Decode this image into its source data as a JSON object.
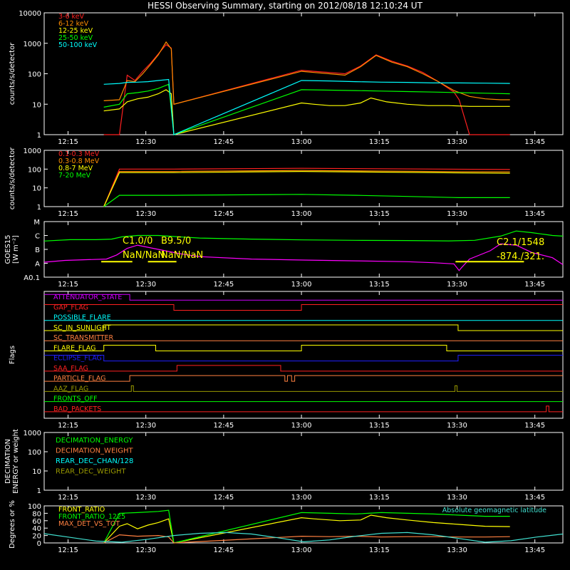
{
  "title": "HESSI Observing Summary, starting on 2012/08/18 12:10:24 UT",
  "x_ticks": [
    "12:15",
    "12:30",
    "12:45",
    "13:00",
    "13:15",
    "13:30",
    "13:45"
  ],
  "x_tick_minutes": [
    4.6,
    19.6,
    34.6,
    49.6,
    64.6,
    79.6,
    94.6
  ],
  "x_range_minutes": [
    0,
    100
  ],
  "chart_data": [
    {
      "id": "rate",
      "type": "line",
      "ylabel": "counts/s/detector",
      "yscale": "log",
      "ylim": [
        1,
        10000
      ],
      "y_ticks": [
        "1",
        "10",
        "100",
        "1000",
        "10000"
      ],
      "series": [
        {
          "name": "3-6 keV",
          "color": "#ff2020",
          "x": [
            11.5,
            14.5,
            16,
            17.5,
            19,
            20.5,
            22,
            23.5,
            24.5,
            25,
            49.6,
            52,
            55,
            58,
            61,
            64,
            67,
            70,
            73,
            76,
            79,
            80,
            82,
            85,
            88,
            89.8
          ],
          "y": [
            1,
            1,
            90,
            60,
            120,
            220,
            450,
            900,
            700,
            10,
            130,
            120,
            110,
            100,
            180,
            420,
            260,
            180,
            110,
            55,
            25,
            14,
            1,
            1,
            1,
            1
          ]
        },
        {
          "name": "6-12 keV",
          "color": "#ff8c00",
          "x": [
            11.5,
            14.5,
            16,
            17.5,
            19,
            20.5,
            22,
            23.5,
            24.5,
            25,
            49.6,
            52,
            55,
            58,
            61,
            64,
            67,
            70,
            73,
            76,
            79,
            82,
            85,
            88,
            89.8
          ],
          "y": [
            13,
            14,
            60,
            55,
            100,
            200,
            420,
            1100,
            650,
            10,
            120,
            110,
            100,
            90,
            170,
            400,
            240,
            170,
            100,
            55,
            28,
            18,
            15,
            14,
            14
          ]
        },
        {
          "name": "12-25 keV",
          "color": "#ffff00",
          "x": [
            11.5,
            14.5,
            16,
            18,
            20,
            22,
            23.5,
            24.5,
            25,
            49.6,
            52,
            55,
            58,
            61,
            63,
            66,
            70,
            74,
            78,
            82,
            86,
            89.8
          ],
          "y": [
            6,
            7,
            12,
            15,
            17,
            22,
            30,
            22,
            1,
            11,
            10,
            9,
            9,
            11,
            16,
            12,
            10,
            9,
            9,
            8.5,
            8.5,
            8.5
          ]
        },
        {
          "name": "25-50 keV",
          "color": "#00ff00",
          "x": [
            11.5,
            14.5,
            16,
            18,
            20,
            22,
            24,
            25,
            49.6,
            55,
            60,
            65,
            70,
            75,
            80,
            85,
            89.8
          ],
          "y": [
            8,
            10,
            22,
            24,
            27,
            33,
            45,
            1,
            30,
            29,
            28,
            27,
            26,
            25,
            24,
            23,
            22
          ]
        },
        {
          "name": "50-100 keV",
          "color": "#00ffff",
          "x": [
            11.5,
            14.5,
            16,
            18,
            20,
            22,
            24,
            25,
            49.6,
            55,
            60,
            65,
            70,
            75,
            80,
            85,
            89.8
          ],
          "y": [
            45,
            48,
            52,
            53,
            55,
            60,
            65,
            1,
            60,
            58,
            55,
            53,
            52,
            50,
            50,
            49,
            48
          ]
        }
      ]
    },
    {
      "id": "gamma",
      "type": "line",
      "ylabel": "counts/s/detector",
      "yscale": "log",
      "ylim": [
        1,
        1000
      ],
      "y_ticks": [
        "1",
        "10",
        "100",
        "1000"
      ],
      "series": [
        {
          "name": "0.1-0.3 MeV",
          "color": "#ff2020",
          "x": [
            11.5,
            14.5,
            25,
            49.6,
            89.8
          ],
          "y": [
            1,
            100,
            100,
            110,
            95
          ]
        },
        {
          "name": "0.3-0.8 MeV",
          "color": "#ff8c00",
          "x": [
            11.5,
            14.5,
            25,
            49.6,
            89.8
          ],
          "y": [
            1,
            75,
            75,
            85,
            70
          ]
        },
        {
          "name": "0.8-7 MeV",
          "color": "#ffff00",
          "x": [
            11.5,
            14.5,
            25,
            49.6,
            89.8
          ],
          "y": [
            1,
            65,
            65,
            75,
            60
          ]
        },
        {
          "name": "7-20 MeV",
          "color": "#00ff00",
          "x": [
            11.5,
            14.5,
            25,
            49.6,
            60,
            70,
            80,
            89.8
          ],
          "y": [
            1,
            4,
            4,
            4.5,
            4,
            3.5,
            3,
            3
          ]
        }
      ]
    },
    {
      "id": "goes",
      "type": "line",
      "ylabel": "GOES15",
      "ylabel2": "[W m⁻²]",
      "yscale": "log",
      "ylim": [
        1e-08,
        0.0001
      ],
      "y_tick_labels": [
        "A0.1",
        "A",
        "B",
        "C",
        "M"
      ],
      "y_tick_values": [
        1e-08,
        1e-07,
        1e-06,
        1e-05,
        0.0001
      ],
      "annotations": [
        "C1.0/0",
        "B9.5/0",
        "NaN/NaN",
        "NaN/NaN",
        "C2.1/1548",
        "-874./321."
      ],
      "series": [
        {
          "name": "long",
          "color": "#00ff00",
          "x": [
            0,
            5,
            10,
            13,
            15,
            18,
            22,
            26,
            30,
            40,
            50,
            60,
            70,
            78,
            83,
            88,
            91,
            94,
            98,
            100
          ],
          "y": [
            4e-06,
            5e-06,
            5e-06,
            5.5e-06,
            8e-06,
            1e-05,
            1e-05,
            8e-06,
            6.5e-06,
            5.5e-06,
            4.8e-06,
            4.5e-06,
            4.3e-06,
            4.1e-06,
            4.5e-06,
            9e-06,
            2.1e-05,
            1.6e-05,
            1e-05,
            9e-06
          ]
        },
        {
          "name": "short",
          "color": "#ff00ff",
          "x": [
            0,
            4,
            8,
            12,
            14,
            16,
            18,
            22,
            26,
            30,
            40,
            50,
            60,
            70,
            75,
            79,
            80,
            80.5,
            82,
            86,
            88,
            91,
            94,
            98,
            100
          ],
          "y": [
            1.2e-07,
            1.6e-07,
            1.8e-07,
            2e-07,
            4e-07,
            1.2e-06,
            2e-06,
            1e-06,
            5e-07,
            3e-07,
            2e-07,
            1.7e-07,
            1.5e-07,
            1.3e-07,
            1.1e-07,
            9e-08,
            3e-08,
            5e-08,
            2e-07,
            8e-07,
            2.5e-06,
            2e-06,
            6e-07,
            2.5e-07,
            8e-08
          ]
        }
      ],
      "segments": [
        {
          "color": "#ffff00",
          "x": [
            11,
            17
          ],
          "y": 1.3e-07
        },
        {
          "color": "#ffff00",
          "x": [
            20,
            25.5
          ],
          "y": 1.3e-07
        },
        {
          "color": "#ffff00",
          "x": [
            79.3,
            92.5
          ],
          "y": 1.3e-07
        }
      ]
    },
    {
      "id": "flags",
      "type": "flags",
      "ylabel": "Flags",
      "flags": [
        {
          "name": "ATTENUATOR_STATE",
          "color": "#d000ff",
          "steps": [
            [
              0,
              1
            ],
            [
              16.5,
              0
            ],
            [
              100,
              0
            ]
          ]
        },
        {
          "name": "GAP_FLAG",
          "color": "#ff2020",
          "steps": [
            [
              0,
              1
            ],
            [
              25,
              0
            ],
            [
              49.6,
              1
            ],
            [
              89.8,
              1
            ],
            [
              100,
              1
            ]
          ]
        },
        {
          "name": "POSSIBLE_FLARE",
          "color": "#00ffff",
          "steps": [
            [
              0,
              0
            ],
            [
              100,
              0
            ]
          ]
        },
        {
          "name": "SC_IN_SUNLIGHT",
          "color": "#ffff00",
          "steps": [
            [
              0,
              0
            ],
            [
              11.5,
              1
            ],
            [
              79.8,
              0
            ],
            [
              100,
              0
            ]
          ]
        },
        {
          "name": "SC_TRANSMITTER",
          "color": "#ff8040",
          "steps": [
            [
              0,
              0
            ],
            [
              100,
              0
            ]
          ]
        },
        {
          "name": "FLARE_FLAG",
          "color": "#ffff00",
          "steps": [
            [
              0,
              0
            ],
            [
              11.5,
              1
            ],
            [
              21.5,
              0
            ],
            [
              49.6,
              1
            ],
            [
              77.6,
              0
            ],
            [
              100,
              0
            ]
          ]
        },
        {
          "name": "ECLIPSE_FLAG",
          "color": "#2020ff",
          "steps": [
            [
              0,
              1
            ],
            [
              11.5,
              0
            ],
            [
              79.8,
              1
            ],
            [
              100,
              1
            ]
          ]
        },
        {
          "name": "SAA_FLAG",
          "color": "#ff2020",
          "steps": [
            [
              0,
              0
            ],
            [
              25.6,
              1
            ],
            [
              45.6,
              0
            ],
            [
              100,
              0
            ]
          ]
        },
        {
          "name": "PARTICLE_FLAG",
          "color": "#ff8040",
          "steps": [
            [
              0,
              0
            ],
            [
              16.5,
              1
            ],
            [
              46.4,
              0
            ],
            [
              46.9,
              1
            ],
            [
              47.7,
              0
            ],
            [
              48.3,
              1
            ],
            [
              100,
              1
            ]
          ]
        },
        {
          "name": "AAZ_FLAG",
          "color": "#999900",
          "steps": [
            [
              0,
              0
            ],
            [
              16.8,
              1
            ],
            [
              17.2,
              0
            ],
            [
              79.2,
              1
            ],
            [
              79.6,
              0
            ],
            [
              100,
              0
            ]
          ]
        },
        {
          "name": "FRONTS_OFF",
          "color": "#00ff00",
          "steps": [
            [
              0,
              0
            ],
            [
              100,
              0
            ]
          ]
        },
        {
          "name": "BAD_PACKETS",
          "color": "#ff2020",
          "steps": [
            [
              0,
              0
            ],
            [
              96.8,
              1
            ],
            [
              97.3,
              0
            ],
            [
              100,
              0
            ]
          ]
        }
      ]
    },
    {
      "id": "decim",
      "type": "line",
      "ylabel": "DECIMATION",
      "ylabel2": "ENERGY or weight",
      "yscale": "log",
      "ylim": [
        1,
        1000
      ],
      "y_ticks": [
        "1",
        "10",
        "100",
        "1000"
      ],
      "series": [
        {
          "name": "DECIMATION_ENERGY",
          "color": "#00ff00",
          "x": [],
          "y": []
        },
        {
          "name": "DECIMATION_WEIGHT",
          "color": "#ff8040",
          "x": [],
          "y": []
        },
        {
          "name": "REAR_DEC_CHAN/128",
          "color": "#00ffff",
          "x": [],
          "y": []
        },
        {
          "name": "REAR_DEC_WEIGHT",
          "color": "#999900",
          "x": [],
          "y": []
        }
      ]
    },
    {
      "id": "ratio",
      "type": "line",
      "ylabel": "Degrees or %",
      "yscale": "linear",
      "ylim": [
        0,
        100
      ],
      "y_ticks": [
        "0",
        "20",
        "40",
        "60",
        "80",
        "100"
      ],
      "right_note": "Absolute geomagnetic latitude",
      "series": [
        {
          "name": "FRONT_RATIO",
          "color": "#ffff00",
          "x": [
            11.5,
            14.5,
            16,
            18,
            20,
            22,
            24,
            25,
            49.6,
            52,
            57,
            61,
            63,
            66,
            70,
            75,
            80,
            85,
            89.8
          ],
          "y": [
            0,
            45,
            52,
            38,
            48,
            55,
            65,
            0,
            68,
            65,
            60,
            62,
            75,
            68,
            62,
            55,
            50,
            45,
            44
          ]
        },
        {
          "name": "FRONT_RATIO_1225",
          "color": "#00ff00",
          "x": [
            11.5,
            14.5,
            18,
            22,
            24,
            25,
            49.6,
            55,
            60,
            65,
            70,
            75,
            80,
            85,
            89.8
          ],
          "y": [
            0,
            80,
            82,
            85,
            88,
            0,
            82,
            80,
            78,
            82,
            80,
            78,
            75,
            72,
            72
          ]
        },
        {
          "name": "MAX_DET_VS_TOT",
          "color": "#ff8040",
          "x": [
            11.5,
            14.5,
            18,
            22,
            24,
            25,
            49.6,
            55,
            60,
            65,
            70,
            75,
            80,
            85,
            89.8
          ],
          "y": [
            0,
            22,
            18,
            20,
            16,
            0,
            18,
            17,
            18,
            16,
            17,
            17,
            16,
            16,
            17
          ]
        },
        {
          "name": "geomag",
          "color": "#40e0d0",
          "x": [
            0,
            5,
            10,
            15,
            20,
            25,
            30,
            35,
            40,
            45,
            50,
            55,
            60,
            65,
            70,
            75,
            80,
            85,
            90,
            95,
            100
          ],
          "y": [
            25,
            15,
            5,
            2,
            10,
            20,
            26,
            28,
            24,
            14,
            3,
            8,
            18,
            26,
            28,
            22,
            12,
            2,
            6,
            16,
            24
          ]
        }
      ]
    }
  ]
}
